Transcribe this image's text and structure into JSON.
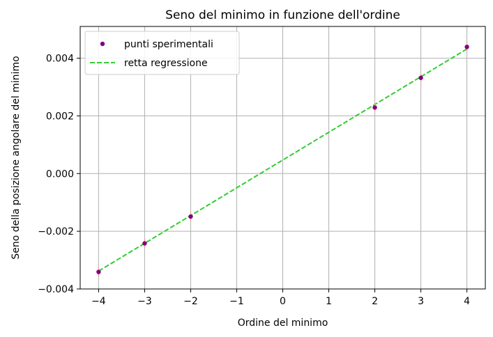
{
  "chart_data": {
    "type": "scatter",
    "title": "Seno del minimo in funzione dell'ordine",
    "xlabel": "Ordine del minimo",
    "ylabel": "Seno della posizione angolare del minimo",
    "xlim": [
      -4.4,
      4.4
    ],
    "ylim": [
      -0.004,
      0.0051
    ],
    "xticks": [
      -4,
      -3,
      -2,
      -1,
      0,
      1,
      2,
      3,
      4
    ],
    "xtick_labels": [
      "−4",
      "−3",
      "−2",
      "−1",
      "0",
      "1",
      "2",
      "3",
      "4"
    ],
    "yticks": [
      -0.004,
      -0.002,
      0.0,
      0.002,
      0.004
    ],
    "ytick_labels": [
      "−0.004",
      "−0.002",
      "0.000",
      "0.002",
      "0.004"
    ],
    "grid": true,
    "legend_position": "top-left",
    "series": [
      {
        "name": "punti sperimentali",
        "kind": "points_with_errorbars",
        "color": "#800080",
        "error_color": "#ff9999",
        "x": [
          -4,
          -3,
          -2,
          2,
          3,
          4
        ],
        "y": [
          -0.00341,
          -0.00242,
          -0.00149,
          0.00229,
          0.00332,
          0.00439
        ],
        "yerr": [
          0.00015,
          0.00015,
          0.00015,
          0.00015,
          0.00015,
          0.00015
        ]
      },
      {
        "name": "retta regressione",
        "kind": "dashed_line",
        "color": "#32cd32",
        "x": [
          -4,
          4
        ],
        "y": [
          -0.00338,
          0.00432
        ]
      }
    ]
  }
}
